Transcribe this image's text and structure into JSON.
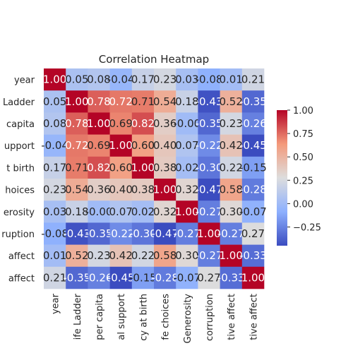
{
  "chart_data": {
    "type": "heatmap",
    "title": "Correlation Heatmap",
    "colormap": "coolwarm",
    "colorbar": {
      "min": -0.45,
      "max": 1.0,
      "ticks": [
        "1.00",
        "0.75",
        "0.50",
        "0.25",
        "0.00",
        "−0.25"
      ],
      "tick_values": [
        1.0,
        0.75,
        0.5,
        0.25,
        0.0,
        -0.25
      ]
    },
    "x_labels": [
      "year",
      "ife Ladder",
      "per capita",
      "al support",
      "cy at birth",
      "fe choices",
      "Generosity",
      "corruption",
      "tive affect",
      "tive affect"
    ],
    "y_labels": [
      "year",
      "Ladder",
      "capita",
      "upport",
      "t birth",
      "hoices",
      "erosity",
      "ruption",
      "affect",
      "affect"
    ],
    "cell_labels": [
      [
        "1.00",
        "0.05",
        "0.08",
        "-0.04",
        "0.17",
        "0.23",
        "0.03",
        "-0.08",
        "0.01",
        "0.21"
      ],
      [
        "0.05",
        "1.00",
        "0.78",
        "0.72",
        "0.71",
        "0.54",
        "0.18",
        "-0.43",
        "0.52",
        "-0.35"
      ],
      [
        "0.08",
        "0.78",
        "1.00",
        "0.69",
        "0.82",
        "0.36",
        "-0.00",
        "-0.35",
        "0.23",
        "-0.26"
      ],
      [
        "-0.04",
        "0.72",
        "0.69",
        "1.00",
        "0.60",
        "0.40",
        "0.07",
        "-0.22",
        "0.42",
        "-0.45"
      ],
      [
        "0.17",
        "0.71",
        "0.82",
        "0.60",
        "1.00",
        "0.38",
        "0.02",
        "-0.30",
        "0.22",
        "-0.15"
      ],
      [
        "0.23",
        "0.54",
        "0.36",
        "0.40",
        "0.38",
        "1.00",
        "0.32",
        "-0.47",
        "0.58",
        "-0.28"
      ],
      [
        "0.03",
        "0.18",
        "-0.00",
        "0.07",
        "0.02",
        "0.32",
        "1.00",
        "-0.27",
        "0.30",
        "-0.07"
      ],
      [
        "-0.08",
        "-0.43",
        "-0.35",
        "-0.22",
        "-0.30",
        "-0.47",
        "-0.27",
        "1.00",
        "-0.27",
        "0.27"
      ],
      [
        "0.01",
        "0.52",
        "0.23",
        "0.42",
        "0.22",
        "0.58",
        "0.30",
        "-0.27",
        "1.00",
        "-0.33"
      ],
      [
        "0.21",
        "-0.35",
        "-0.26",
        "-0.45",
        "-0.15",
        "-0.28",
        "-0.07",
        "0.27",
        "-0.33",
        "1.00"
      ]
    ]
  }
}
